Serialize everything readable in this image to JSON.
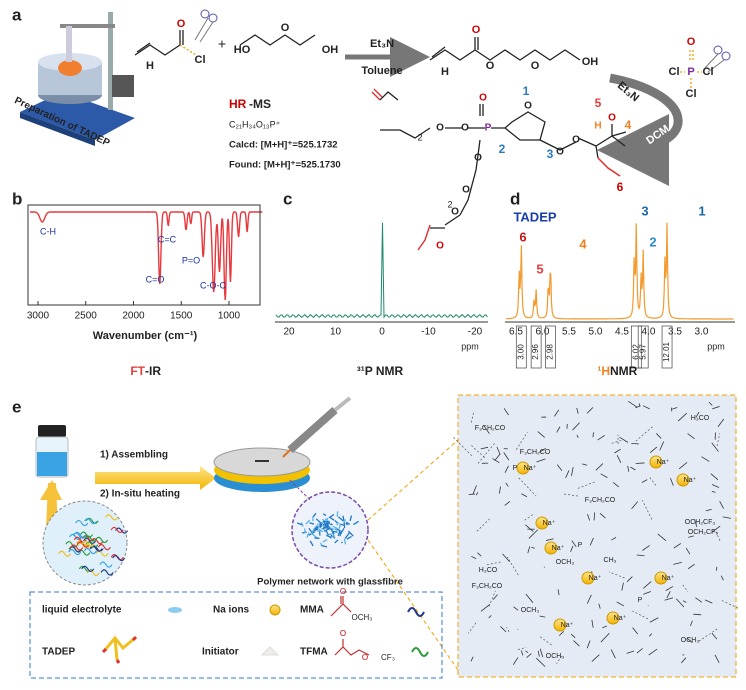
{
  "panel_labels": [
    "a",
    "b",
    "c",
    "d",
    "e"
  ],
  "scheme": {
    "preparation": "Preparation of TADEP",
    "reactant1_atoms": [
      "O",
      "H",
      "Cl"
    ],
    "plus": "+",
    "reactant2_atoms": [
      "HO",
      "O",
      "OH"
    ],
    "step1_reagent": "Et₃N",
    "step1_solvent": "Toluene",
    "intermediate_atoms": [
      "H",
      "O",
      "O",
      "O",
      "OH"
    ],
    "pocl3_atoms": [
      "O",
      "Cl",
      "P",
      "Cl",
      "Cl"
    ],
    "step2_reagent": "Et₃N",
    "step2_solvent": "DCM",
    "hrms": {
      "title_hr": "HR",
      "title_ms": "-MS",
      "formula": "C₂₁H₃₄O₁₃P⁺",
      "calcd": "Calcd: [M+H]⁺=525.1732",
      "found": "Found: [M+H]⁺=525.1730"
    },
    "tadep_atoms": [
      "O",
      "O",
      "P",
      "O",
      "O",
      "O",
      "O",
      "O",
      "H",
      "O",
      "O",
      "O",
      "O"
    ],
    "tadep_subscripts": [
      "2",
      "2"
    ],
    "tadep_numbers": [
      "1",
      "2",
      "3",
      "4",
      "5",
      "6"
    ],
    "tadep_name": "TADEP"
  },
  "ftir": {
    "x_ticks": [
      "3000",
      "2500",
      "2000",
      "1500",
      "1000"
    ],
    "x_label": "Wavenumber (cm⁻¹)",
    "peaks": [
      "C-H",
      "C=C",
      "C=O",
      "P=O",
      "C-O-C"
    ],
    "caption_ft": "FT",
    "caption_ir": "-IR"
  },
  "p_nmr": {
    "x_ticks": [
      "20",
      "10",
      "0",
      "-10",
      "-20"
    ],
    "unit": "ppm",
    "caption": "³¹P NMR"
  },
  "h_nmr": {
    "x_ticks": [
      "6.5",
      "6.0",
      "5.5",
      "5.0",
      "4.5",
      "4.0",
      "3.5",
      "3.0"
    ],
    "unit": "ppm",
    "peaks": [
      "6",
      "5",
      "4",
      "3",
      "2",
      "1"
    ],
    "integrals": [
      "3.00",
      "2.96",
      "2.98",
      "6.02",
      "5.97",
      "12.01"
    ],
    "caption_h": "¹H",
    "caption_nmr": " NMR"
  },
  "assembly": {
    "steps": [
      "1) Assembling",
      "2) In-situ heating"
    ],
    "network_label": "Polymer network with glassfibre",
    "legend": [
      "liquid electrolyte",
      "Na ions",
      "MMA",
      "TADEP",
      "Initiator",
      "TFMA"
    ],
    "mma_atoms": [
      "O",
      "OCH₃"
    ],
    "tfma_atoms": [
      "O",
      "O",
      "CF₃"
    ]
  },
  "network": {
    "labels": [
      "F₃CH₂CO",
      "H₃CO",
      "F₃CH₂CO",
      "Na⁺",
      "Na⁺",
      "Na⁺",
      "F₃CH₂CO",
      "OCH₂CF₃",
      "Na⁺",
      "H₃CO",
      "F₃CH₂CO",
      "OCH₃",
      "Na⁺",
      "Na⁺",
      "OCH₂CF₃",
      "Na⁺",
      "OCH₃",
      "Na⁺",
      "OCH₃",
      "P",
      "P",
      "P",
      "Na⁺",
      "CH₃",
      "OCH₃"
    ]
  }
}
